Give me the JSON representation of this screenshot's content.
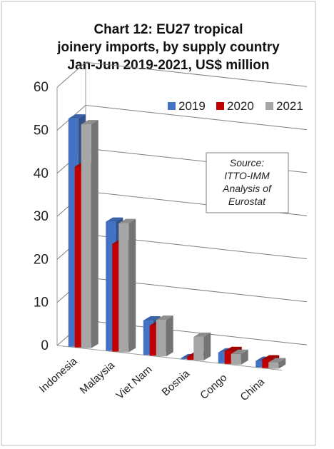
{
  "chart_data": {
    "type": "bar",
    "title_lines": [
      "Chart 12: EU27 tropical",
      "joinery imports, by supply country",
      "Jan-Jun 2019-2021, US$ million"
    ],
    "categories": [
      "Indonesia",
      "Malaysia",
      "Viet Nam",
      "Bosnia",
      "Congo",
      "China"
    ],
    "series": [
      {
        "name": "2019",
        "values": [
          53,
          30,
          8,
          0.2,
          2.5,
          1.5
        ]
      },
      {
        "name": "2020",
        "values": [
          42,
          25,
          7,
          0.8,
          3,
          2
        ]
      },
      {
        "name": "2021",
        "values": [
          52,
          30,
          8.5,
          5.5,
          2.5,
          1.5
        ]
      }
    ],
    "ylim": [
      0,
      60
    ],
    "yticks": [
      0,
      10,
      20,
      30,
      40,
      50,
      60
    ],
    "grid": true,
    "style": "3d-clustered-bar",
    "legend_position": "top-right",
    "colors": {
      "2019": "#4472C4",
      "2020": "#C00000",
      "2021": "#A6A6A6"
    },
    "annotation": [
      "Source:",
      "ITTO-IMM",
      "Analysis of",
      "Eurostat"
    ]
  }
}
